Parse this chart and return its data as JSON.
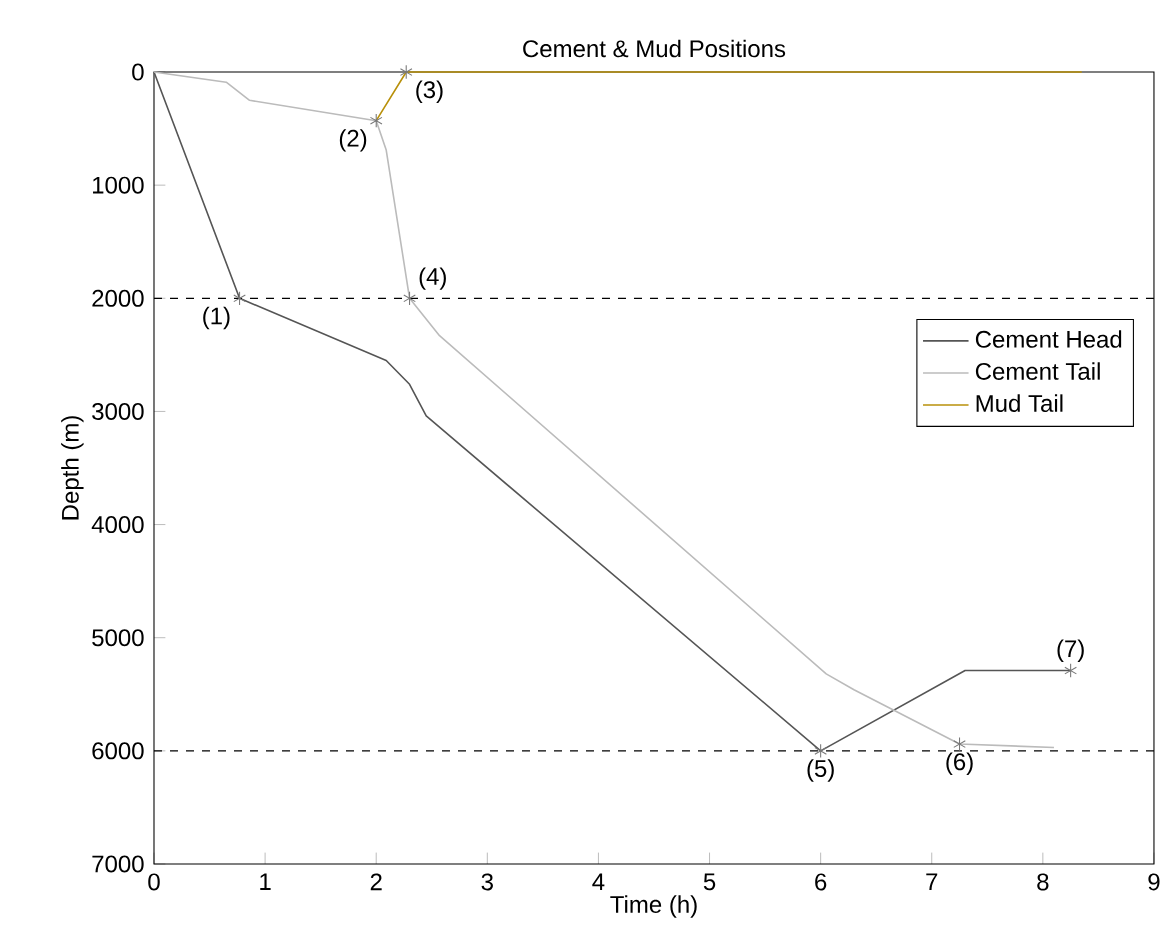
{
  "chart_data": {
    "type": "line",
    "title": "Cement & Mud Positions",
    "xlabel": "Time (h)",
    "ylabel": "Depth (m)",
    "series": [
      {
        "name": "Cement Head",
        "color": "#555555",
        "x": [
          0,
          0.77,
          2.09,
          2.3,
          2.45,
          6.0,
          7.3,
          8.25
        ],
        "values": [
          0,
          2000,
          2550,
          2760,
          3040,
          6000,
          5290,
          5290
        ]
      },
      {
        "name": "Cement Tail",
        "color": "#bbbbbb",
        "x": [
          0,
          0.65,
          0.86,
          2.0,
          2.09,
          2.3,
          2.57,
          6.05,
          6.3,
          7.25,
          8.1
        ],
        "values": [
          0,
          90,
          250,
          430,
          690,
          2000,
          2330,
          5320,
          5460,
          5940,
          5970
        ]
      },
      {
        "name": "Mud Tail",
        "color": "#b8900a",
        "x": [
          2.0,
          2.27,
          8.35
        ],
        "values": [
          430,
          0,
          0
        ]
      }
    ],
    "xlim": [
      0,
      9
    ],
    "ylim": [
      7000,
      0
    ],
    "xticks": [
      0,
      1,
      2,
      3,
      4,
      5,
      6,
      7,
      8,
      9
    ],
    "yticks": [
      0,
      1000,
      2000,
      3000,
      4000,
      5000,
      6000,
      7000
    ],
    "ref_lines": [
      {
        "axis": "y",
        "value": 2000,
        "line_style": "dashed",
        "color": "#000000"
      },
      {
        "axis": "y",
        "value": 6000,
        "line_style": "dashed",
        "color": "#000000"
      }
    ],
    "annotations": [
      {
        "text": "(1)",
        "x": 0.77,
        "y": 2000
      },
      {
        "text": "(2)",
        "x": 2.0,
        "y": 430
      },
      {
        "text": "(3)",
        "x": 2.27,
        "y": 0
      },
      {
        "text": "(4)",
        "x": 2.3,
        "y": 2000
      },
      {
        "text": "(5)",
        "x": 6.0,
        "y": 6000
      },
      {
        "text": "(6)",
        "x": 7.25,
        "y": 5940
      },
      {
        "text": "(7)",
        "x": 8.25,
        "y": 5290
      }
    ],
    "legend": "right",
    "grid": false
  }
}
